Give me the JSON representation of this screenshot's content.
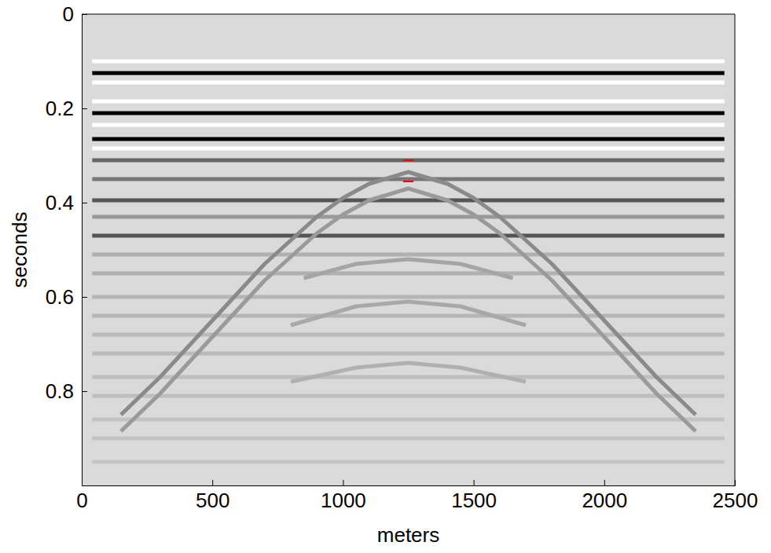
{
  "chart_data": {
    "type": "line",
    "x_label": "meters",
    "y_label": "seconds",
    "xlim": [
      0,
      2500
    ],
    "ylim": [
      0,
      1
    ],
    "xticks": [
      0,
      500,
      1000,
      1500,
      2000,
      2500
    ],
    "yticks": [
      0,
      0.2,
      0.4,
      0.6,
      0.8
    ],
    "grid": false,
    "series": [
      {
        "color": "#ffffff",
        "x": [
          40,
          2460
        ],
        "values": [
          0.1,
          0.1
        ]
      },
      {
        "color": "#ffffff",
        "x": [
          40,
          2460
        ],
        "values": [
          0.145,
          0.145
        ]
      },
      {
        "color": "#ffffff",
        "x": [
          40,
          2460
        ],
        "values": [
          0.185,
          0.185
        ]
      },
      {
        "color": "#ffffff",
        "x": [
          40,
          2460
        ],
        "values": [
          0.235,
          0.235
        ]
      },
      {
        "color": "#ffffff",
        "x": [
          40,
          2460
        ],
        "values": [
          0.285,
          0.285
        ]
      },
      {
        "color": "#000000",
        "x": [
          40,
          2460
        ],
        "values": [
          0.125,
          0.125
        ]
      },
      {
        "color": "#000000",
        "x": [
          40,
          2460
        ],
        "values": [
          0.21,
          0.21
        ]
      },
      {
        "color": "#000000",
        "x": [
          40,
          2460
        ],
        "values": [
          0.265,
          0.265
        ]
      },
      {
        "color": "#666666",
        "x": [
          40,
          2460
        ],
        "values": [
          0.31,
          0.31
        ]
      },
      {
        "color": "#777777",
        "x": [
          40,
          2460
        ],
        "values": [
          0.35,
          0.35
        ]
      },
      {
        "color": "#555555",
        "x": [
          40,
          2460
        ],
        "values": [
          0.395,
          0.395
        ]
      },
      {
        "color": "#999999",
        "x": [
          40,
          2460
        ],
        "values": [
          0.43,
          0.43
        ]
      },
      {
        "color": "#555555",
        "x": [
          40,
          2460
        ],
        "values": [
          0.47,
          0.47
        ]
      },
      {
        "color": "#b0b0b0",
        "x": [
          40,
          2460
        ],
        "values": [
          0.51,
          0.51
        ]
      },
      {
        "color": "#b0b0b0",
        "x": [
          40,
          2460
        ],
        "values": [
          0.55,
          0.55
        ]
      },
      {
        "color": "#b5b5b5",
        "x": [
          40,
          2460
        ],
        "values": [
          0.6,
          0.6
        ]
      },
      {
        "color": "#b5b5b5",
        "x": [
          40,
          2460
        ],
        "values": [
          0.64,
          0.64
        ]
      },
      {
        "color": "#bababa",
        "x": [
          40,
          2460
        ],
        "values": [
          0.68,
          0.68
        ]
      },
      {
        "color": "#bababa",
        "x": [
          40,
          2460
        ],
        "values": [
          0.72,
          0.72
        ]
      },
      {
        "color": "#bebebe",
        "x": [
          40,
          2460
        ],
        "values": [
          0.77,
          0.77
        ]
      },
      {
        "color": "#bebebe",
        "x": [
          40,
          2460
        ],
        "values": [
          0.81,
          0.81
        ]
      },
      {
        "color": "#c2c2c2",
        "x": [
          40,
          2460
        ],
        "values": [
          0.86,
          0.86
        ]
      },
      {
        "color": "#c2c2c2",
        "x": [
          40,
          2460
        ],
        "values": [
          0.9,
          0.9
        ]
      },
      {
        "color": "#c5c5c5",
        "x": [
          40,
          2460
        ],
        "values": [
          0.95,
          0.95
        ]
      },
      {
        "color": "#8a8a8a",
        "x": [
          150,
          300,
          400,
          500,
          600,
          700,
          800,
          900,
          1000,
          1100,
          1250,
          1400,
          1500,
          1600,
          1700,
          1800,
          1900,
          2000,
          2100,
          2200,
          2350
        ],
        "values": [
          0.85,
          0.77,
          0.71,
          0.65,
          0.59,
          0.53,
          0.48,
          0.43,
          0.39,
          0.36,
          0.335,
          0.36,
          0.39,
          0.43,
          0.48,
          0.53,
          0.59,
          0.65,
          0.71,
          0.77,
          0.85
        ]
      },
      {
        "color": "#9a9a9a",
        "x": [
          150,
          300,
          400,
          500,
          600,
          700,
          800,
          900,
          1000,
          1100,
          1250,
          1400,
          1500,
          1600,
          1700,
          1800,
          1900,
          2000,
          2100,
          2200,
          2350
        ],
        "values": [
          0.885,
          0.805,
          0.745,
          0.685,
          0.625,
          0.565,
          0.515,
          0.465,
          0.425,
          0.395,
          0.37,
          0.395,
          0.425,
          0.465,
          0.515,
          0.565,
          0.625,
          0.685,
          0.745,
          0.805,
          0.885
        ]
      },
      {
        "color": "#a5a5a5",
        "x": [
          850,
          1050,
          1250,
          1450,
          1650
        ],
        "values": [
          0.56,
          0.53,
          0.52,
          0.53,
          0.56
        ]
      },
      {
        "color": "#a8a8a8",
        "x": [
          800,
          1050,
          1250,
          1450,
          1700
        ],
        "values": [
          0.66,
          0.62,
          0.61,
          0.62,
          0.66
        ]
      },
      {
        "color": "#b0b0b0",
        "x": [
          800,
          1050,
          1250,
          1450,
          1700
        ],
        "values": [
          0.78,
          0.75,
          0.74,
          0.75,
          0.78
        ]
      },
      {
        "color": "#ff0000",
        "x": [
          1230,
          1270
        ],
        "values": [
          0.31,
          0.31
        ]
      },
      {
        "color": "#ff0000",
        "x": [
          1230,
          1270
        ],
        "values": [
          0.355,
          0.355
        ]
      }
    ]
  }
}
